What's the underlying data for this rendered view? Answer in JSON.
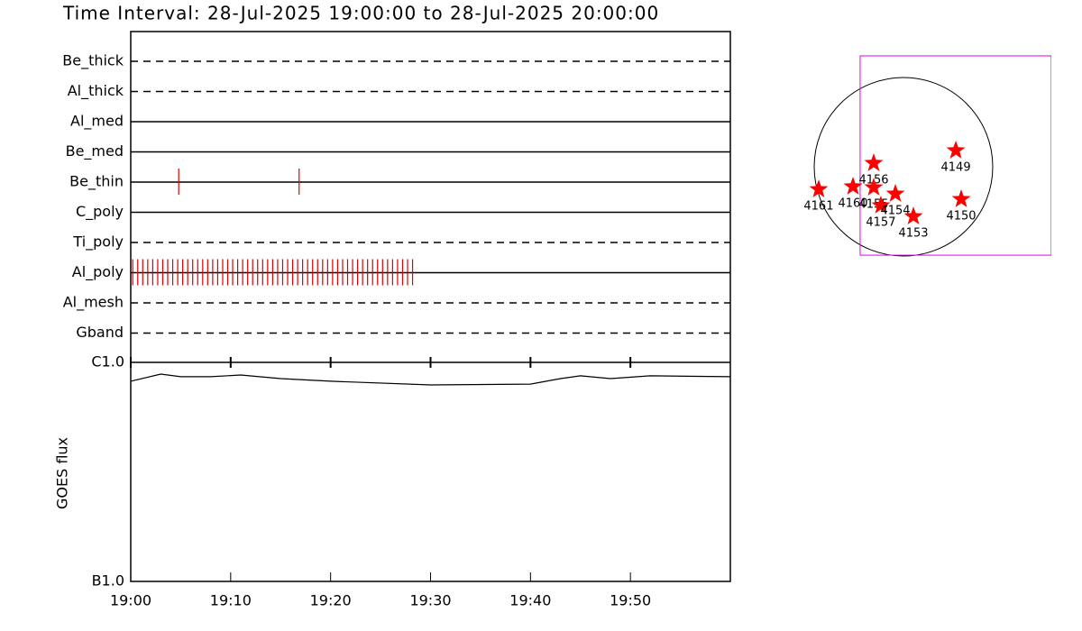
{
  "chart_data": [
    {
      "type": "timeline",
      "title": "Time Interval: 28-Jul-2025 19:00:00 to 28-Jul-2025 20:00:00",
      "categories": [
        "Be_thick",
        "Al_thick",
        "Al_med",
        "Be_med",
        "Be_thin",
        "C_poly",
        "Ti_poly",
        "Al_poly",
        "Al_mesh",
        "Gband"
      ],
      "line_styles": [
        "dashed",
        "dashed",
        "solid",
        "solid",
        "solid",
        "solid",
        "dashed",
        "solid",
        "dashed",
        "dashed"
      ],
      "events": [
        [],
        [],
        [],
        [],
        [
          4.8,
          16.85
        ],
        [],
        [],
        [
          0.2,
          0.7,
          1.2,
          1.7,
          2.2,
          2.7,
          3.2,
          3.7,
          4.2,
          4.7,
          5.2,
          5.7,
          6.2,
          6.7,
          7.2,
          7.7,
          8.2,
          8.7,
          9.2,
          9.7,
          10.2,
          10.7,
          11.2,
          11.7,
          12.2,
          12.7,
          13.2,
          13.7,
          14.2,
          14.7,
          15.2,
          15.7,
          16.2,
          16.7,
          17.2,
          17.7,
          18.2,
          18.7,
          19.2,
          19.7,
          20.2,
          20.7,
          21.2,
          21.7,
          22.2,
          22.7,
          23.2,
          23.7,
          24.2,
          24.7,
          25.2,
          25.7,
          26.2,
          26.7,
          27.2,
          27.7,
          28.2
        ],
        [],
        []
      ],
      "color": "#dd0000",
      "xlim": [
        0,
        60
      ]
    },
    {
      "type": "line",
      "ylabel": "GOES flux",
      "log_scale": true,
      "x": [
        0,
        3,
        5,
        8,
        11,
        15,
        20,
        30,
        40,
        43,
        45,
        48,
        52,
        60
      ],
      "values": [
        8.2e-07,
        8.84e-07,
        8.6e-07,
        8.6e-07,
        8.76e-07,
        8.43e-07,
        8.2e-07,
        7.89e-07,
        7.96e-07,
        8.43e-07,
        8.68e-07,
        8.43e-07,
        8.68e-07,
        8.6e-07
      ],
      "color": "#000000",
      "ylim": [
        1e-07,
        1e-06
      ],
      "yticks": [
        {
          "value": 1e-06,
          "label": "C1.0"
        },
        {
          "value": 1e-07,
          "label": "B1.0"
        }
      ],
      "xlim": [
        0,
        60
      ],
      "xticks": [
        {
          "value": 0,
          "label": "19:00"
        },
        {
          "value": 10,
          "label": "19:10"
        },
        {
          "value": 20,
          "label": "19:20"
        },
        {
          "value": 30,
          "label": "19:30"
        },
        {
          "value": 40,
          "label": "19:40"
        },
        {
          "value": 50,
          "label": "19:50"
        }
      ]
    },
    {
      "type": "scatter",
      "labels": [
        "4161",
        "4160",
        "4156",
        "4155",
        "4157",
        "4154",
        "4153",
        "4149",
        "4150"
      ],
      "x": [
        -912,
        -543,
        -320,
        -320,
        -243,
        -87,
        107,
        563,
        621
      ],
      "y": [
        -243,
        -213,
        39,
        -223,
        -417,
        -291,
        -534,
        175,
        -349
      ],
      "color": "#ff0000",
      "fov_x": [
        -466,
        1590
      ],
      "fov_y": [
        -951,
        1193
      ]
    }
  ]
}
